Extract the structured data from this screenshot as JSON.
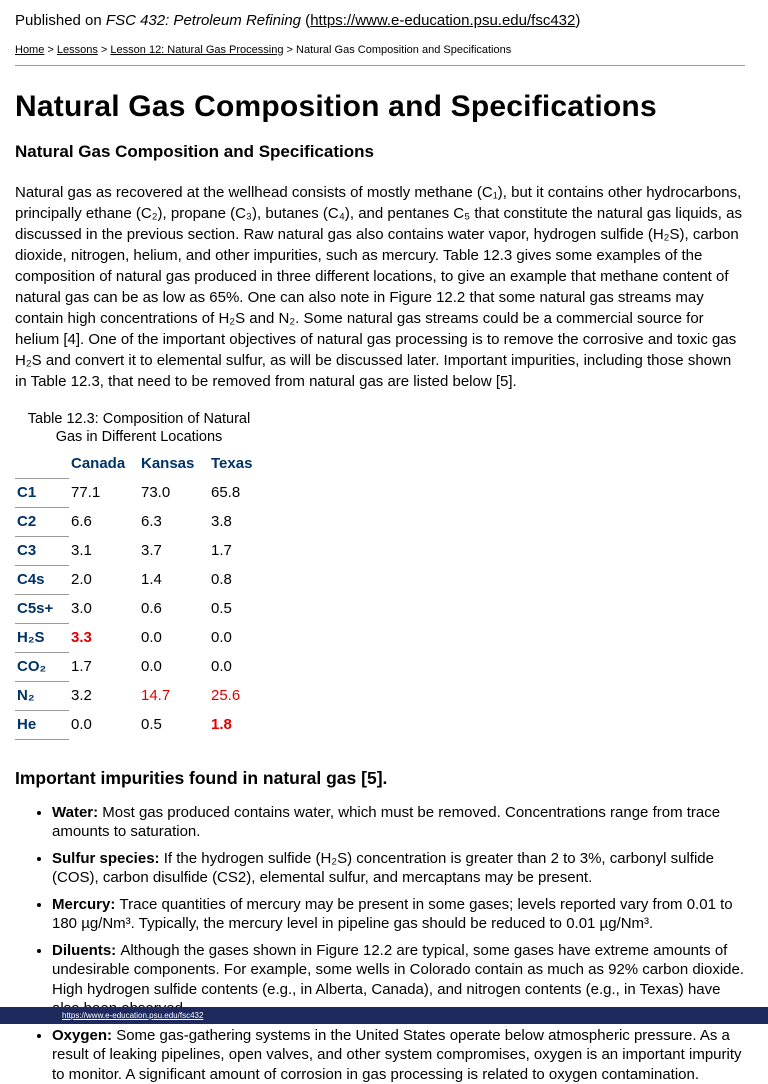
{
  "header": {
    "published_prefix": "Published on ",
    "site_title": "FSC 432: Petroleum Refining",
    "open_paren": " (",
    "site_url": "https://www.e-education.psu.edu/fsc432",
    "close_paren": ")"
  },
  "breadcrumb": {
    "separator": ">",
    "items": [
      {
        "label": "Home",
        "link": true
      },
      {
        "label": "Lessons",
        "link": true
      },
      {
        "label": "Lesson 12: Natural Gas Processing",
        "link": true
      },
      {
        "label": "Natural Gas Composition and Specifications",
        "link": false
      }
    ]
  },
  "page_title": "Natural Gas Composition and Specifications",
  "section_heading": "Natural Gas Composition and Specifications",
  "intro_paragraph": "Natural gas as recovered at the wellhead consists of mostly methane (C₁), but it contains other hydrocarbons, principally ethane (C₂), propane (C₃), butanes (C₄), and pentanes C₅ that constitute the natural gas liquids, as discussed in the previous section. Raw natural gas also contains water vapor, hydrogen sulfide (H₂S), carbon dioxide, nitrogen, helium, and other impurities, such as mercury. Table 12.3 gives some examples of the composition of natural gas produced in three different locations, to give an example that methane content of natural gas can be as low as 65%. One can also note in Figure 12.2 that some natural gas streams may contain high concentrations of H₂S and N₂. Some natural gas streams could be a commercial source for helium [4]. One of the important objectives of natural gas processing is to remove the corrosive and toxic gas H₂S and convert it to elemental sulfur, as will be discussed later. Important impurities, including those shown in Table 12.3, that need to be removed from natural gas are listed below [5].",
  "table": {
    "caption": "Table 12.3: Composition of Natural Gas in Different Locations",
    "columns": [
      "Canada",
      "Kansas",
      "Texas"
    ],
    "rows": [
      {
        "label": "C1",
        "values": [
          {
            "text": "77.1"
          },
          {
            "text": "73.0"
          },
          {
            "text": "65.8"
          }
        ]
      },
      {
        "label": "C2",
        "values": [
          {
            "text": "6.6"
          },
          {
            "text": "6.3"
          },
          {
            "text": "3.8"
          }
        ]
      },
      {
        "label": "C3",
        "values": [
          {
            "text": "3.1"
          },
          {
            "text": "3.7"
          },
          {
            "text": "1.7"
          }
        ]
      },
      {
        "label": "C4s",
        "values": [
          {
            "text": "2.0"
          },
          {
            "text": "1.4"
          },
          {
            "text": "0.8"
          }
        ]
      },
      {
        "label": "C5s+",
        "values": [
          {
            "text": "3.0"
          },
          {
            "text": "0.6"
          },
          {
            "text": "0.5"
          }
        ]
      },
      {
        "label": "H₂S",
        "values": [
          {
            "text": "3.3",
            "red": true,
            "bold": true
          },
          {
            "text": "0.0"
          },
          {
            "text": "0.0"
          }
        ]
      },
      {
        "label": "CO₂",
        "values": [
          {
            "text": "1.7"
          },
          {
            "text": "0.0"
          },
          {
            "text": "0.0"
          }
        ]
      },
      {
        "label": "N₂",
        "values": [
          {
            "text": "3.2"
          },
          {
            "text": "14.7",
            "red": true
          },
          {
            "text": "25.6",
            "red": true
          }
        ]
      },
      {
        "label": "He",
        "values": [
          {
            "text": "0.0"
          },
          {
            "text": "0.5"
          },
          {
            "text": "1.8",
            "red": true,
            "bold": true
          }
        ]
      }
    ]
  },
  "impurities_heading": "Important impurities found in natural gas [5].",
  "bullets": [
    {
      "label": "Water:",
      "text": "Most gas produced contains water, which must be removed. Concentrations range from trace amounts to saturation."
    },
    {
      "label": "Sulfur species:",
      "text": "If the hydrogen sulfide (H₂S) concentration is greater than 2 to 3%, carbonyl sulfide (COS), carbon disulfide (CS2), elemental sulfur, and mercaptans may be present."
    },
    {
      "label": "Mercury:",
      "text": "Trace quantities of mercury may be present in some gases; levels reported vary from 0.01 to 180 µg/Nm³. Typically, the mercury level in pipeline gas should be reduced to 0.01 µg/Nm³."
    },
    {
      "label": "Diluents:",
      "text": "Although the gases shown in Figure 12.2 are typical, some gases have extreme amounts of undesirable components. For example, some wells in Colorado contain as much as 92% carbon dioxide. High hydrogen sulfide contents (e.g., in Alberta, Canada), and nitrogen contents (e.g., in Texas) have also been observed."
    },
    {
      "label": "Oxygen:",
      "text": "Some gas-gathering systems in the United States operate below atmospheric pressure. As a result of leaking pipelines, open valves, and other system compromises, oxygen is an important impurity to monitor. A significant amount of corrosion in gas processing is related to oxygen contamination."
    }
  ],
  "footer": {
    "source_text": "https://www.e-education.psu.edu/fsc432"
  },
  "colors": {
    "table_label_navy": "#003366",
    "alert_red": "#e00000",
    "footer_bar_navy": "#1e2a5e"
  }
}
